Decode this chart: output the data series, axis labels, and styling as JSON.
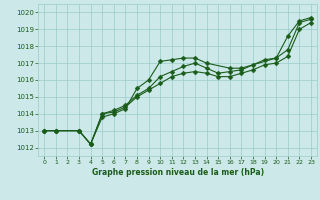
{
  "title": "Graphe pression niveau de la mer (hPa)",
  "bg_color": "#cce8e8",
  "grid_color": "#99cccc",
  "line_color": "#1a5c1a",
  "xlim": [
    -0.5,
    23.5
  ],
  "ylim": [
    1011.5,
    1020.5
  ],
  "xticks": [
    0,
    1,
    2,
    3,
    4,
    5,
    6,
    7,
    8,
    9,
    10,
    11,
    12,
    13,
    14,
    15,
    16,
    17,
    18,
    19,
    20,
    21,
    22,
    23
  ],
  "yticks": [
    1012,
    1013,
    1014,
    1015,
    1016,
    1017,
    1018,
    1019,
    1020
  ],
  "series": [
    {
      "x": [
        0,
        1,
        3,
        4,
        5,
        6,
        7,
        8,
        9,
        10,
        11,
        12,
        13,
        14,
        16,
        17,
        20,
        21,
        22,
        23
      ],
      "y": [
        1013.0,
        1013.0,
        1013.0,
        1012.2,
        1013.8,
        1014.0,
        1014.3,
        1015.5,
        1016.0,
        1017.1,
        1017.2,
        1017.3,
        1017.3,
        1017.0,
        1016.7,
        1016.7,
        1017.3,
        1018.6,
        1019.5,
        1019.7
      ],
      "marker": "D",
      "ms": 2.5
    },
    {
      "x": [
        0,
        1,
        3,
        4,
        5,
        6,
        7,
        8,
        9,
        10,
        11,
        12,
        13,
        14,
        15,
        16,
        17,
        18,
        19,
        20,
        21,
        22,
        23
      ],
      "y": [
        1013.0,
        1013.0,
        1013.0,
        1012.2,
        1014.0,
        1014.2,
        1014.5,
        1015.1,
        1015.5,
        1016.2,
        1016.5,
        1016.8,
        1017.0,
        1016.7,
        1016.4,
        1016.5,
        1016.6,
        1016.9,
        1017.2,
        1017.3,
        1017.8,
        1019.4,
        1019.6
      ],
      "marker": "D",
      "ms": 2.5
    },
    {
      "x": [
        0,
        1,
        3,
        4,
        5,
        6,
        7,
        8,
        9,
        10,
        11,
        12,
        13,
        14,
        15,
        16,
        17,
        18,
        19,
        20,
        21,
        22,
        23
      ],
      "y": [
        1013.0,
        1013.0,
        1013.0,
        1012.2,
        1014.0,
        1014.1,
        1014.4,
        1015.0,
        1015.4,
        1015.8,
        1016.2,
        1016.4,
        1016.5,
        1016.4,
        1016.2,
        1016.2,
        1016.4,
        1016.6,
        1016.9,
        1017.0,
        1017.4,
        1019.0,
        1019.4
      ],
      "marker": "D",
      "ms": 2.5
    }
  ]
}
